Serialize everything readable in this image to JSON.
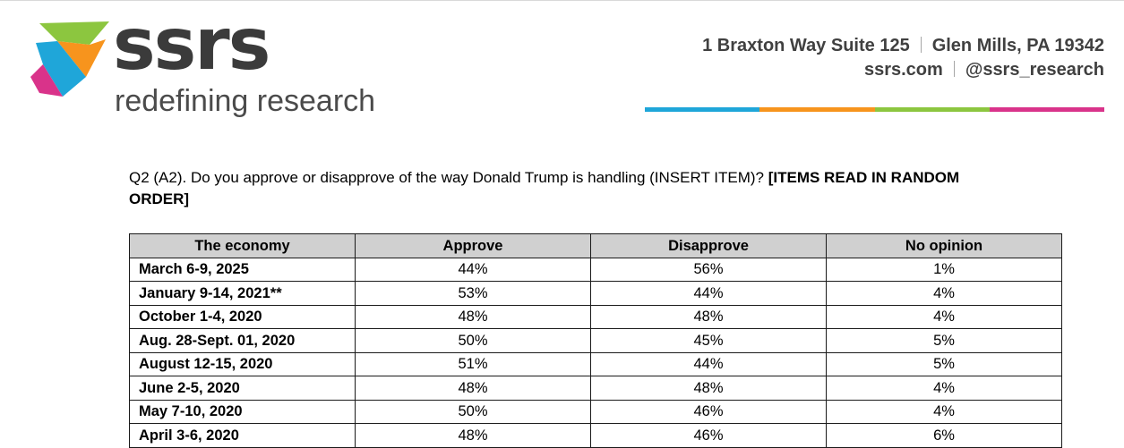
{
  "header": {
    "logo_wordmark": "ssrs",
    "logo_tagline": "redefining research",
    "address_line1_part1": "1 Braxton Way Suite 125",
    "address_line1_part2": "Glen Mills, PA 19342",
    "address_line2_part1": "ssrs.com",
    "address_line2_part2": "@ssrs_research",
    "bar_colors": [
      "#1fa6d9",
      "#f7941d",
      "#8cc63f",
      "#d9338a"
    ]
  },
  "question": {
    "text": "Q2 (A2). Do you approve or disapprove of the way Donald Trump is handling (INSERT ITEM)?",
    "instruction": "[ITEMS READ IN RANDOM ORDER]"
  },
  "table": {
    "columns": [
      "The economy",
      "Approve",
      "Disapprove",
      "No opinion"
    ],
    "rows": [
      {
        "date": "March 6-9, 2025",
        "approve": "44%",
        "disapprove": "56%",
        "no_opinion": "1%"
      },
      {
        "date": "January 9-14, 2021**",
        "approve": "53%",
        "disapprove": "44%",
        "no_opinion": "4%"
      },
      {
        "date": "October 1-4, 2020",
        "approve": "48%",
        "disapprove": "48%",
        "no_opinion": "4%"
      },
      {
        "date": "Aug. 28-Sept. 01, 2020",
        "approve": "50%",
        "disapprove": "45%",
        "no_opinion": "5%"
      },
      {
        "date": "August 12-15, 2020",
        "approve": "51%",
        "disapprove": "44%",
        "no_opinion": "5%"
      },
      {
        "date": "June 2-5, 2020",
        "approve": "48%",
        "disapprove": "48%",
        "no_opinion": "4%"
      },
      {
        "date": "May 7-10, 2020",
        "approve": "50%",
        "disapprove": "46%",
        "no_opinion": "4%"
      },
      {
        "date": "April 3-6, 2020",
        "approve": "48%",
        "disapprove": "46%",
        "no_opinion": "6%"
      }
    ]
  }
}
